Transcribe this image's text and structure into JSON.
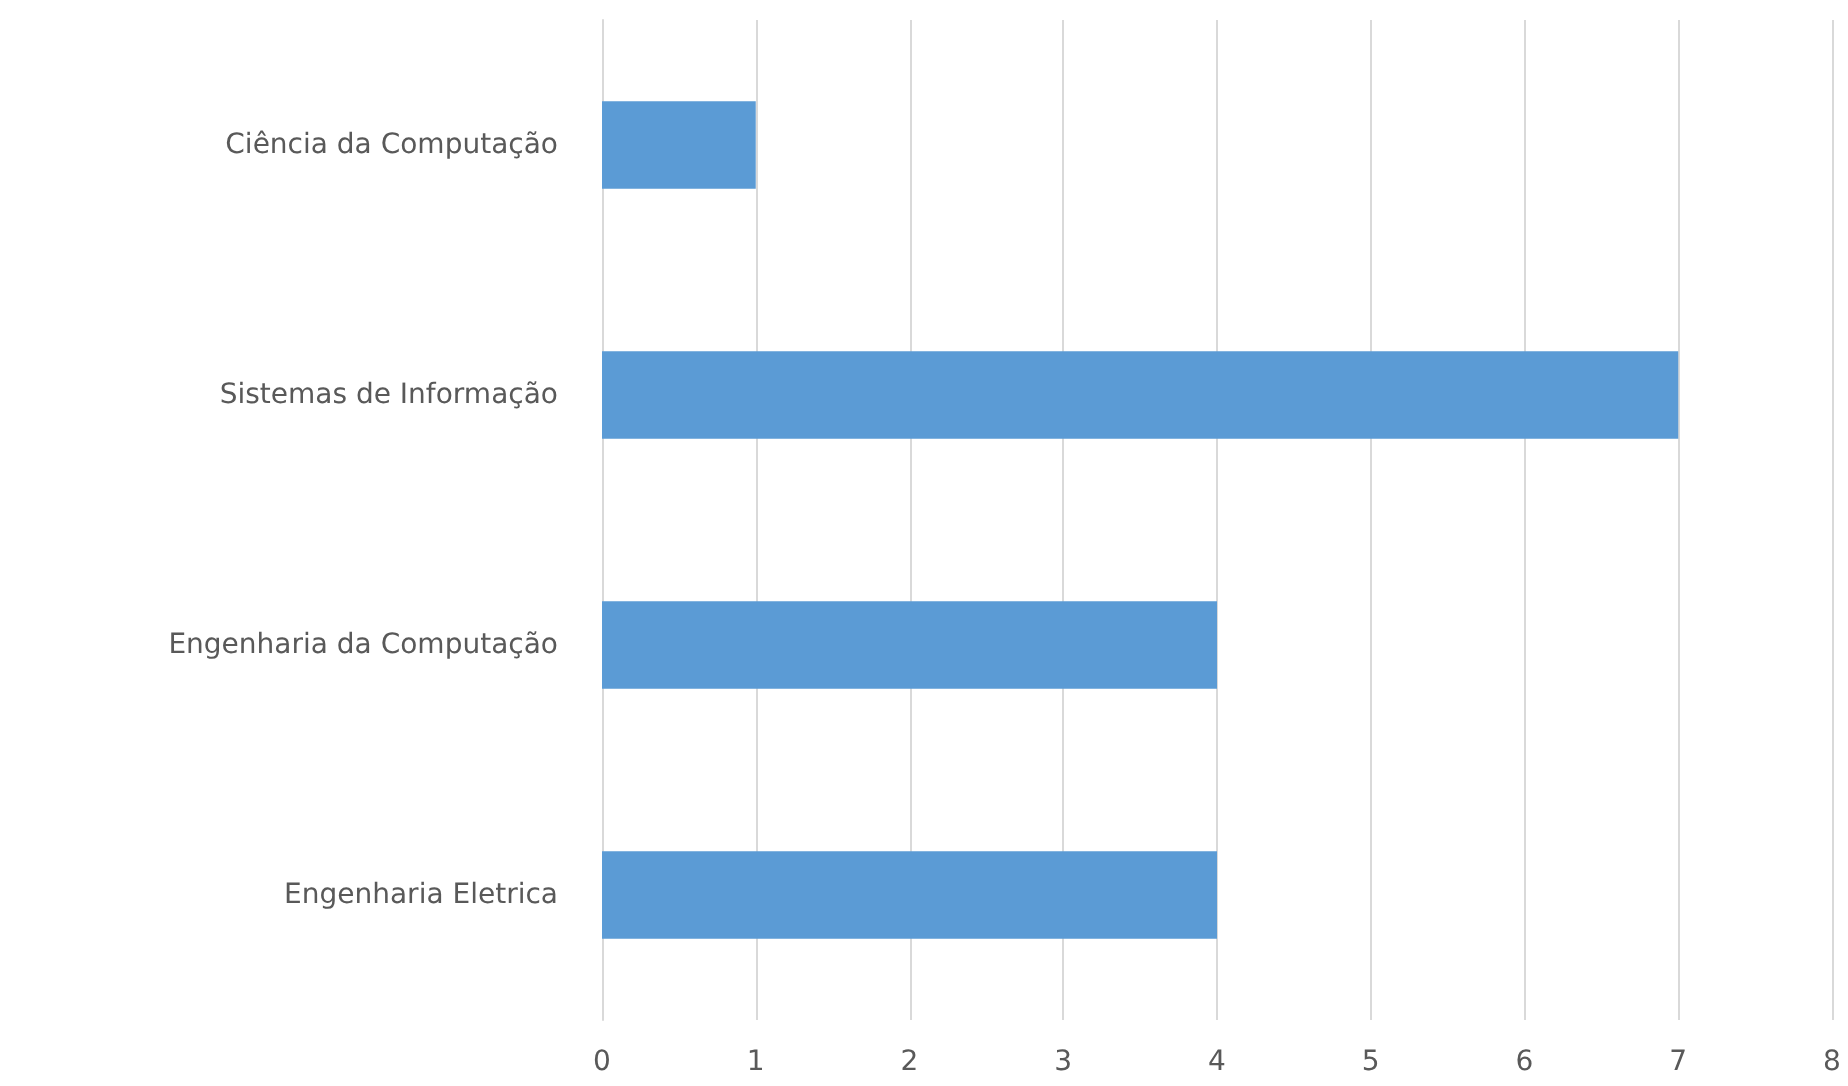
{
  "chart_data": {
    "type": "bar",
    "orientation": "horizontal",
    "categories": [
      "Ciência da Computação",
      "Sistemas de Informação",
      "Engenharia da Computação",
      "Engenharia Eletrica"
    ],
    "values": [
      1,
      7,
      4,
      4
    ],
    "color": "#5b9bd5",
    "xlim": [
      0,
      8
    ],
    "xticks": [
      0,
      1,
      2,
      3,
      4,
      5,
      6,
      7,
      8
    ],
    "grid": "x"
  }
}
